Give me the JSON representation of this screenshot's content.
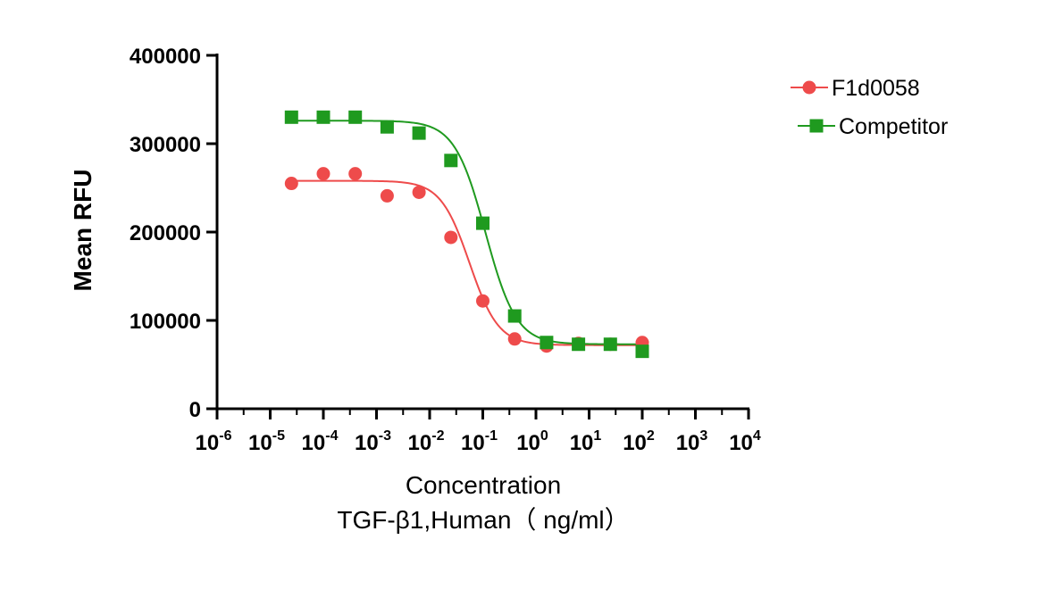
{
  "chart_data": {
    "type": "scatter",
    "title": "",
    "xlabel": "Concentration",
    "xlabel_line2": "TGF-β1,Human（ ng/ml）",
    "ylabel": "Mean RFU",
    "x_scale": "log10",
    "xlim": [
      -6,
      4
    ],
    "ylim": [
      0,
      400000
    ],
    "y_ticks": [
      0,
      100000,
      200000,
      300000,
      400000
    ],
    "y_tick_labels": [
      "0",
      "100000",
      "200000",
      "300000",
      "400000"
    ],
    "x_tick_exponents": [
      -6,
      -5,
      -4,
      -3,
      -2,
      -1,
      0,
      1,
      2,
      3,
      4
    ],
    "x_tick_labels": [
      {
        "base": "10",
        "exp": "-6"
      },
      {
        "base": "10",
        "exp": "-5"
      },
      {
        "base": "10",
        "exp": "-4"
      },
      {
        "base": "10",
        "exp": "-3"
      },
      {
        "base": "10",
        "exp": "-2"
      },
      {
        "base": "10",
        "exp": "-1"
      },
      {
        "base": "10",
        "exp": "0"
      },
      {
        "base": "10",
        "exp": "1"
      },
      {
        "base": "10",
        "exp": "2"
      },
      {
        "base": "10",
        "exp": "3"
      },
      {
        "base": "10",
        "exp": "4"
      }
    ],
    "legend_position": "top-right",
    "series": [
      {
        "name": "F1d0058",
        "color": "#ee4b4b",
        "marker": "circle",
        "log_x": [
          -4.6,
          -4.0,
          -3.4,
          -2.8,
          -2.2,
          -1.6,
          -1.0,
          -0.4,
          0.2,
          0.8,
          1.4,
          2.0
        ],
        "y": [
          255000,
          266000,
          266000,
          241000,
          245000,
          194000,
          122000,
          79000,
          71000,
          74000,
          73000,
          75000
        ],
        "fit": {
          "bottom": 72000,
          "top": 258000,
          "log_ec50": -1.25,
          "hill": 1.6
        }
      },
      {
        "name": "Competitor",
        "color": "#1f9a1f",
        "marker": "square",
        "log_x": [
          -4.6,
          -4.0,
          -3.4,
          -2.8,
          -2.2,
          -1.6,
          -1.0,
          -0.4,
          0.2,
          0.8,
          1.4,
          2.0
        ],
        "y": [
          330000,
          330000,
          330000,
          319000,
          312000,
          281000,
          210000,
          105000,
          75000,
          73000,
          73000,
          65000
        ],
        "fit": {
          "bottom": 73000,
          "top": 326000,
          "log_ec50": -0.95,
          "hill": 1.5
        }
      }
    ]
  }
}
